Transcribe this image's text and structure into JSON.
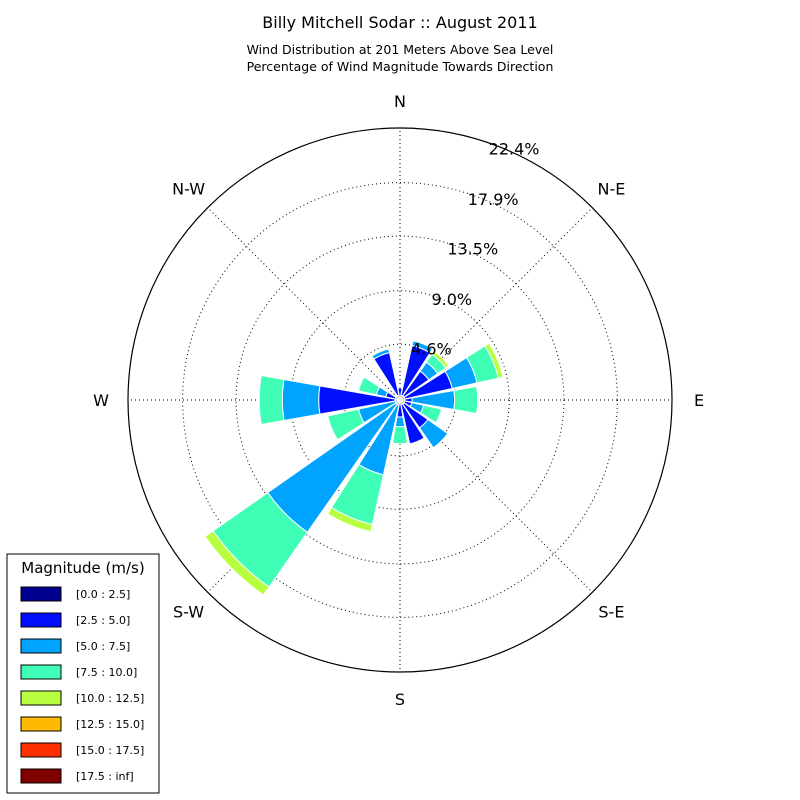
{
  "chart_data": {
    "type": "windrose",
    "title": "Billy Mitchell Sodar :: August 2011",
    "subtitle_lines": [
      "Wind Distribution at 201 Meters Above Sea Level",
      "Percentage of Wind Magnitude Towards Direction"
    ],
    "rmax": 22.4,
    "ring_values": [
      4.6,
      9.0,
      13.5,
      17.9,
      22.4
    ],
    "ring_labels": [
      "4.6%",
      "9.0%",
      "13.5%",
      "17.9%",
      "22.4%"
    ],
    "direction_labels": [
      {
        "label": "N",
        "angle": 0
      },
      {
        "label": "N-E",
        "angle": 45
      },
      {
        "label": "E",
        "angle": 90
      },
      {
        "label": "S-E",
        "angle": 135
      },
      {
        "label": "S",
        "angle": 180
      },
      {
        "label": "S-W",
        "angle": 225
      },
      {
        "label": "W",
        "angle": 270
      },
      {
        "label": "N-W",
        "angle": 315
      }
    ],
    "legend": {
      "title": "Magnitude (m/s)",
      "entries": [
        {
          "label": "[0.0 : 2.5]",
          "color": "#00008f"
        },
        {
          "label": "[2.5 : 5.0]",
          "color": "#0010ff"
        },
        {
          "label": "[5.0 : 7.5]",
          "color": "#00a4ff"
        },
        {
          "label": "[7.5 : 10.0]",
          "color": "#3fffb7"
        },
        {
          "label": "[10.0 : 12.5]",
          "color": "#b7ff3f"
        },
        {
          "label": "[12.5 : 15.0]",
          "color": "#ffb900"
        },
        {
          "label": "[15.0 : 17.5]",
          "color": "#ff3000"
        },
        {
          "label": "[17.5 : inf]",
          "color": "#800000"
        }
      ]
    },
    "sector_width_deg": 20,
    "directions_deg": [
      0,
      22.5,
      45,
      67.5,
      90,
      112.5,
      135,
      157.5,
      180,
      202.5,
      225,
      247.5,
      270,
      292.5,
      315,
      337.5
    ],
    "cumulative_percent": [
      [
        0.3,
        1.0,
        1.0,
        1.0,
        1.0,
        1.0,
        1.0,
        1.0
      ],
      [
        0.4,
        4.6,
        5.0,
        5.0,
        5.0,
        5.0,
        5.0,
        5.0
      ],
      [
        0.4,
        2.9,
        3.8,
        4.6,
        4.9,
        4.9,
        4.9,
        4.9
      ],
      [
        0.4,
        4.4,
        6.5,
        8.3,
        8.7,
        8.7,
        8.7,
        8.7
      ],
      [
        0.4,
        1.0,
        4.5,
        6.4,
        6.4,
        6.4,
        6.4,
        6.4
      ],
      [
        0.4,
        1.0,
        2.0,
        3.5,
        3.5,
        3.5,
        3.5,
        3.5
      ],
      [
        0.4,
        2.8,
        4.8,
        4.8,
        4.8,
        4.8,
        4.8,
        4.8
      ],
      [
        0.4,
        3.7,
        3.7,
        3.7,
        3.7,
        3.7,
        3.7,
        3.7
      ],
      [
        0.3,
        1.4,
        2.2,
        3.6,
        3.6,
        3.6,
        3.6,
        3.6
      ],
      [
        0.4,
        0.4,
        6.3,
        10.5,
        11.1,
        11.1,
        11.1,
        11.1
      ],
      [
        0.4,
        0.4,
        13.3,
        18.8,
        19.6,
        19.6,
        19.6,
        19.6
      ],
      [
        0.4,
        0.4,
        3.5,
        6.1,
        6.1,
        6.1,
        6.1,
        6.1
      ],
      [
        0.4,
        6.7,
        9.7,
        11.6,
        11.6,
        11.6,
        11.6,
        11.6
      ],
      [
        0.4,
        1.2,
        2.0,
        3.5,
        3.5,
        3.5,
        3.5,
        3.5
      ],
      [
        0.4,
        0.4,
        0.4,
        0.4,
        0.4,
        0.4,
        0.4,
        0.4
      ],
      [
        0.4,
        4.0,
        4.3,
        4.3,
        4.3,
        4.3,
        4.3,
        4.3
      ]
    ]
  }
}
